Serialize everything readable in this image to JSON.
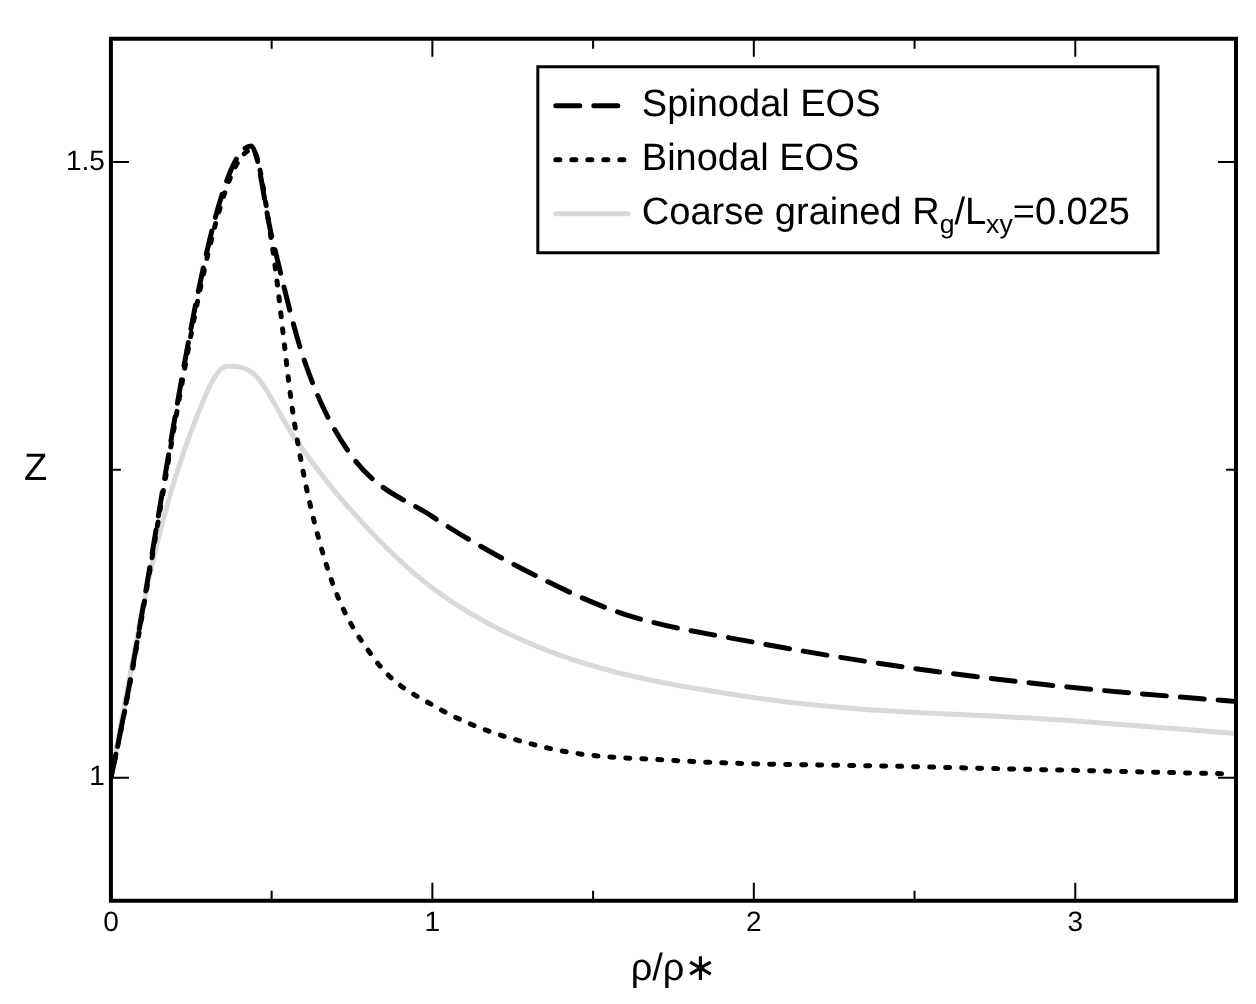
{
  "chart_data": {
    "type": "line",
    "xlabel": "ρ/ρ∗",
    "ylabel": "Z",
    "xlim": [
      0,
      3.5
    ],
    "ylim": [
      0.9,
      1.6
    ],
    "xticks": [
      0,
      {
        "value": 0.5,
        "label": null
      },
      1,
      {
        "value": 1.5,
        "label": null
      },
      2,
      {
        "value": 2.5,
        "label": null
      },
      3
    ],
    "yticks": [
      1,
      {
        "value": 1.25,
        "label": null
      },
      1.5
    ],
    "grid": false,
    "legend": "top right",
    "marker": "none",
    "series": [
      {
        "name": "Spinodal EOS",
        "color": "#000000",
        "line_style": "dashed",
        "x": [
          0,
          0.436,
          0.5,
          0.6,
          0.744,
          1,
          1.36,
          1.606,
          2,
          2.49,
          3,
          3.49
        ],
        "values": [
          1,
          1.513,
          1.44,
          1.34,
          1.263,
          1.212,
          1.159,
          1.132,
          1.11,
          1.089,
          1.073,
          1.062
        ]
      },
      {
        "name": "Binodal EOS",
        "color": "#000000",
        "line_style": "dotted",
        "x": [
          0,
          0.44,
          0.5,
          0.571,
          0.67,
          0.818,
          1,
          1.36,
          1.75,
          2.49,
          3.49
        ],
        "values": [
          1,
          1.51,
          1.435,
          1.288,
          1.173,
          1.097,
          1.059,
          1.024,
          1.014,
          1.009,
          1.003
        ]
      },
      {
        "name": "Coarse grained R$_{g}$/L$_{xy}$=0.025",
        "color": "#d9d9d9",
        "line_style": "solid",
        "x": [
          0,
          0.128,
          0.251,
          0.362,
          0.448,
          0.571,
          0.744,
          1,
          1.36,
          2,
          3,
          3.49
        ],
        "values": [
          1,
          1.173,
          1.282,
          1.334,
          1.327,
          1.276,
          1.218,
          1.154,
          1.103,
          1.065,
          1.046,
          1.036
        ]
      }
    ]
  }
}
